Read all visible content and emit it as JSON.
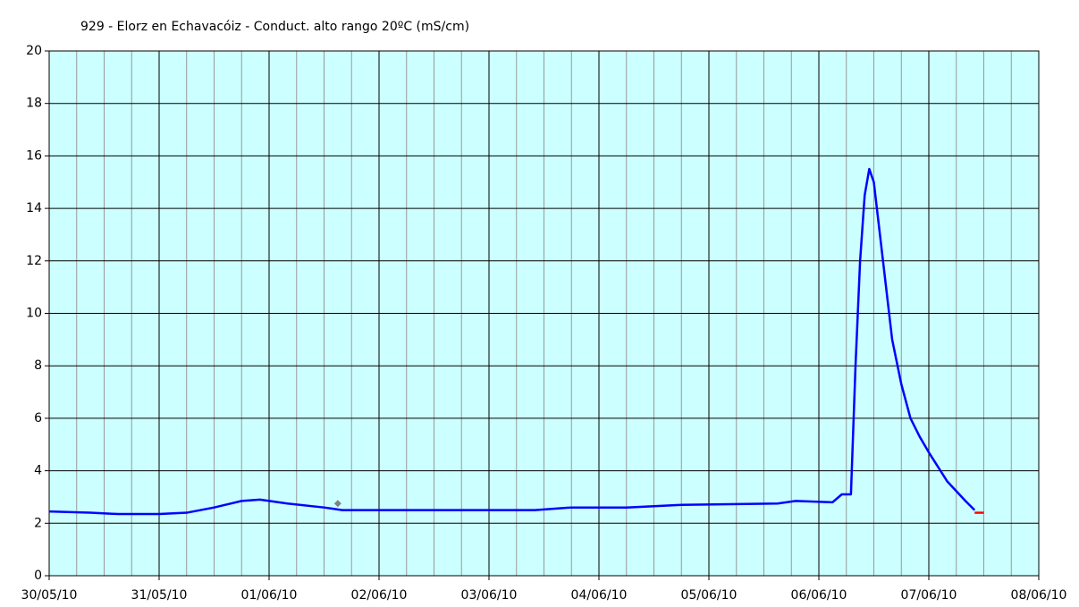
{
  "chart_data": {
    "type": "line",
    "title": "929 - Elorz en Echavacóiz - Conduct. alto rango 20ºC (mS/cm)",
    "background": "#ccffff",
    "grid": true,
    "x_minor_step_hours": 6,
    "xlim": [
      "2010-05-30",
      "2010-06-08"
    ],
    "xticks": [
      {
        "value": "2010-05-30",
        "label": "30/05/10"
      },
      {
        "value": "2010-05-31",
        "label": "31/05/10"
      },
      {
        "value": "2010-06-01",
        "label": "01/06/10"
      },
      {
        "value": "2010-06-02",
        "label": "02/06/10"
      },
      {
        "value": "2010-06-03",
        "label": "03/06/10"
      },
      {
        "value": "2010-06-04",
        "label": "04/06/10"
      },
      {
        "value": "2010-06-05",
        "label": "05/06/10"
      },
      {
        "value": "2010-06-06",
        "label": "06/06/10"
      },
      {
        "value": "2010-06-07",
        "label": "07/06/10"
      },
      {
        "value": "2010-06-08",
        "label": "08/06/10"
      }
    ],
    "ylim": [
      0,
      20
    ],
    "yticks": [
      0,
      2,
      4,
      6,
      8,
      10,
      12,
      14,
      16,
      18,
      20
    ],
    "series": [
      {
        "color": "#0000ff",
        "x": [
          "2010-05-30 00:00",
          "2010-05-30 09:00",
          "2010-05-30 15:00",
          "2010-05-31 00:00",
          "2010-05-31 06:00",
          "2010-05-31 12:00",
          "2010-05-31 18:00",
          "2010-05-31 22:00",
          "2010-06-01 04:00",
          "2010-06-01 12:00",
          "2010-06-01 14:00",
          "2010-06-01 16:00",
          "2010-06-02 05:00",
          "2010-06-03 10:00",
          "2010-06-03 18:00",
          "2010-06-04 06:00",
          "2010-06-04 18:00",
          "2010-06-05 15:00",
          "2010-06-05 19:00",
          "2010-06-06 03:00",
          "2010-06-06 05:00",
          "2010-06-06 07:00",
          "2010-06-06 08:00",
          "2010-06-06 09:00",
          "2010-06-06 10:00",
          "2010-06-06 11:00",
          "2010-06-06 12:00",
          "2010-06-06 13:00",
          "2010-06-06 14:00",
          "2010-06-06 16:00",
          "2010-06-06 18:00",
          "2010-06-06 20:00",
          "2010-06-06 22:00",
          "2010-06-07 00:00",
          "2010-06-07 04:00",
          "2010-06-07 08:00",
          "2010-06-07 10:00"
        ],
        "values": [
          2.45,
          2.4,
          2.35,
          2.35,
          2.4,
          2.6,
          2.85,
          2.9,
          2.75,
          2.6,
          2.55,
          2.5,
          2.5,
          2.5,
          2.6,
          2.6,
          2.7,
          2.75,
          2.85,
          2.8,
          3.1,
          3.1,
          8,
          12,
          14.5,
          15.5,
          15,
          13.5,
          12,
          9,
          7.3,
          6,
          5.3,
          4.7,
          3.6,
          2.85,
          2.5
        ]
      },
      {
        "color": "#ff0000",
        "x": [
          "2010-06-07 10:00",
          "2010-06-07 12:00"
        ],
        "values": [
          2.4,
          2.4
        ]
      },
      {
        "color": "#808080",
        "marker": "diamond",
        "x": [
          "2010-06-01 15:00"
        ],
        "values": [
          2.75
        ]
      }
    ]
  }
}
